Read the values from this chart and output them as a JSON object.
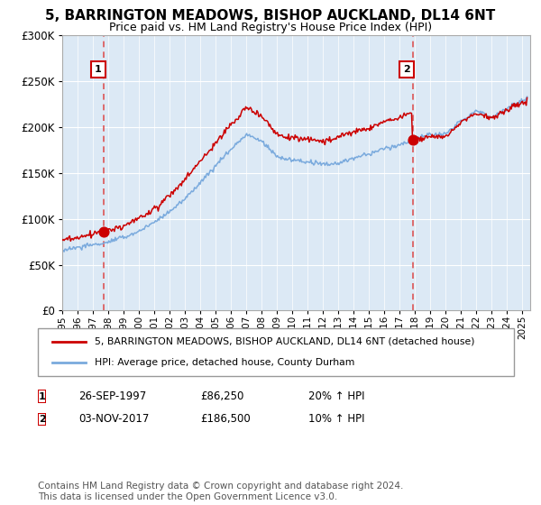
{
  "title": "5, BARRINGTON MEADOWS, BISHOP AUCKLAND, DL14 6NT",
  "subtitle": "Price paid vs. HM Land Registry's House Price Index (HPI)",
  "legend_line1": "5, BARRINGTON MEADOWS, BISHOP AUCKLAND, DL14 6NT (detached house)",
  "legend_line2": "HPI: Average price, detached house, County Durham",
  "sale1_date": "26-SEP-1997",
  "sale1_price": "£86,250",
  "sale1_hpi": "20% ↑ HPI",
  "sale1_year": 1997.73,
  "sale1_value": 86250,
  "sale2_date": "03-NOV-2017",
  "sale2_price": "£186,500",
  "sale2_hpi": "10% ↑ HPI",
  "sale2_year": 2017.84,
  "sale2_value": 186500,
  "red_line_color": "#cc0000",
  "blue_line_color": "#7aaadd",
  "dashed_line_color": "#dd5555",
  "marker_color": "#cc0000",
  "annotation_box_color": "#cc0000",
  "chart_bg_color": "#dce9f5",
  "grid_color": "#ffffff",
  "fig_bg_color": "#ffffff",
  "ylim": [
    0,
    300000
  ],
  "xlim_start": 1995.0,
  "xlim_end": 2025.5,
  "copyright_text": "Contains HM Land Registry data © Crown copyright and database right 2024.\nThis data is licensed under the Open Government Licence v3.0.",
  "footer_fontsize": 7.5,
  "title_fontsize": 11,
  "subtitle_fontsize": 9,
  "hpi_knots_x": [
    1995,
    1996,
    1997,
    1998,
    1999,
    2000,
    2001,
    2002,
    2003,
    2004,
    2005,
    2006,
    2007,
    2008,
    2009,
    2010,
    2011,
    2012,
    2013,
    2014,
    2015,
    2016,
    2017,
    2018,
    2019,
    2020,
    2021,
    2022,
    2023,
    2024,
    2025.3
  ],
  "hpi_knots_y": [
    66000,
    68000,
    71000,
    75000,
    80000,
    87000,
    96000,
    108000,
    122000,
    140000,
    158000,
    176000,
    192000,
    185000,
    168000,
    165000,
    163000,
    161000,
    163000,
    168000,
    172000,
    178000,
    182000,
    188000,
    193000,
    192000,
    208000,
    218000,
    212000,
    222000,
    232000
  ],
  "red_scale1": 1.205,
  "red_scale2": 1.098
}
